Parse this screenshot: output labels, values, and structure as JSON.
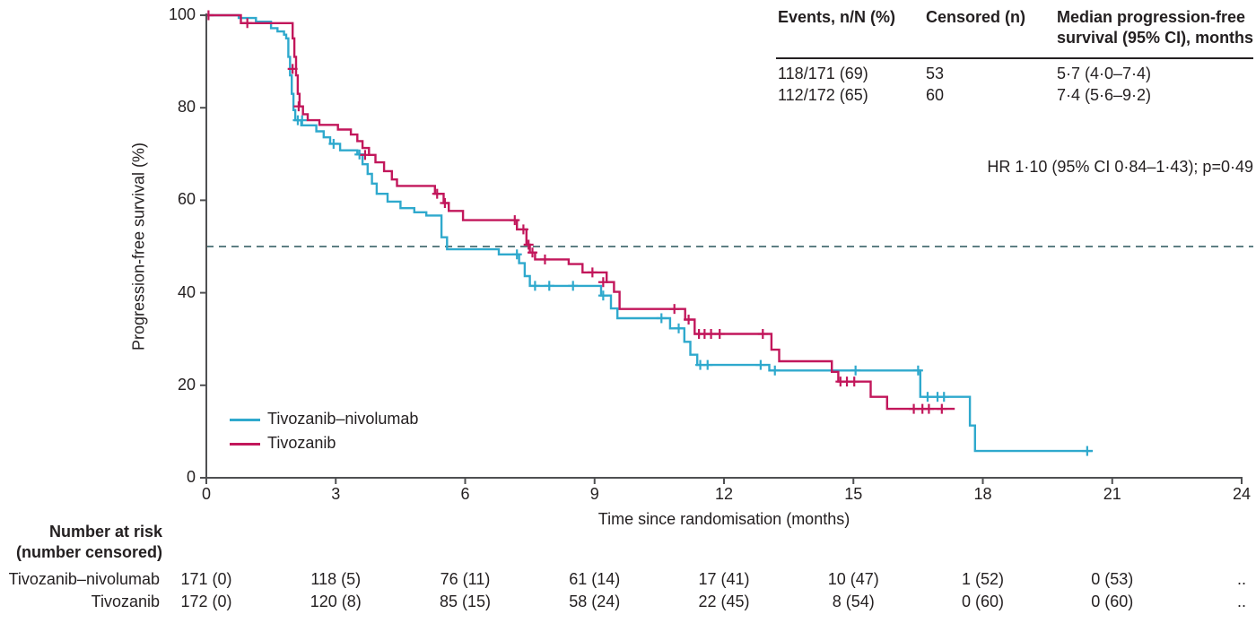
{
  "colors": {
    "text": "#231f20",
    "axis": "#4f5052",
    "series_blue": "#2fa9cd",
    "series_red": "#c2175b",
    "reference_line": "#5d7f83"
  },
  "summary_table": {
    "headers": [
      "Events, n/N (%)",
      "Censored (n)",
      "Median progression-free survival (95% CI), months"
    ],
    "rows": [
      [
        "118/171 (69)",
        "53",
        "5·7 (4·0–7·4)"
      ],
      [
        "112/172 (65)",
        "60",
        "7·4 (5·6–9·2)"
      ]
    ]
  },
  "annotations": {
    "hr_text": "HR 1·10 (95% CI 0·84–1·43); p=0·49"
  },
  "legend": {
    "items": [
      {
        "label": "Tivozanib–nivolumab",
        "color": "#2fa9cd"
      },
      {
        "label": "Tivozanib",
        "color": "#c2175b"
      }
    ]
  },
  "chart_data": {
    "type": "line",
    "subtype": "kaplan-meier-step",
    "title": "",
    "xlabel": "Time since randomisation (months)",
    "ylabel": "Progression-free survival (%)",
    "xlim": [
      0,
      24
    ],
    "ylim": [
      0,
      100
    ],
    "xticks": [
      0,
      3,
      6,
      9,
      12,
      15,
      18,
      21,
      24
    ],
    "yticks": [
      0,
      20,
      40,
      60,
      80,
      100
    ],
    "grid": false,
    "legend_position": "inside-lower-left",
    "reference_line": {
      "y": 50,
      "style": "dashed",
      "color": "#5d7f83"
    },
    "series": [
      {
        "name": "Tivozanib–nivolumab",
        "color": "#2fa9cd",
        "steps": [
          [
            0,
            100
          ],
          [
            0.75,
            99.4
          ],
          [
            1.15,
            98.6
          ],
          [
            1.5,
            97.2
          ],
          [
            1.65,
            96.5
          ],
          [
            1.8,
            95.8
          ],
          [
            1.85,
            95
          ],
          [
            1.9,
            91
          ],
          [
            1.94,
            87
          ],
          [
            1.98,
            83
          ],
          [
            2.02,
            79.5
          ],
          [
            2.06,
            77.3
          ],
          [
            2.2,
            76.2
          ],
          [
            2.55,
            74.9
          ],
          [
            2.72,
            73.6
          ],
          [
            2.87,
            72.2
          ],
          [
            3.1,
            70.8
          ],
          [
            3.5,
            69.9
          ],
          [
            3.62,
            67.8
          ],
          [
            3.74,
            65.7
          ],
          [
            3.84,
            63.6
          ],
          [
            3.95,
            61.4
          ],
          [
            4.2,
            59.7
          ],
          [
            4.5,
            58.3
          ],
          [
            4.82,
            57.4
          ],
          [
            5.1,
            56.7
          ],
          [
            5.45,
            52
          ],
          [
            5.58,
            49.4
          ],
          [
            6.78,
            48.3
          ],
          [
            7.25,
            46.4
          ],
          [
            7.38,
            43.6
          ],
          [
            7.5,
            41.5
          ],
          [
            9.15,
            39.4
          ],
          [
            9.38,
            36.6
          ],
          [
            9.53,
            34.5
          ],
          [
            10.75,
            32.3
          ],
          [
            11.08,
            29.4
          ],
          [
            11.22,
            26.6
          ],
          [
            11.38,
            24.4
          ],
          [
            13.05,
            23.2
          ],
          [
            16.55,
            17.5
          ],
          [
            17.7,
            11.3
          ],
          [
            17.82,
            5.8
          ],
          [
            20.55,
            5.8
          ]
        ],
        "censors": [
          [
            2.12,
            77.3
          ],
          [
            2.22,
            77.3
          ],
          [
            2.95,
            72.2
          ],
          [
            3.55,
            69.9
          ],
          [
            7.2,
            48.3
          ],
          [
            7.62,
            41.5
          ],
          [
            7.95,
            41.5
          ],
          [
            8.5,
            41.5
          ],
          [
            9.2,
            39.4
          ],
          [
            10.55,
            34.5
          ],
          [
            10.95,
            32.3
          ],
          [
            11.45,
            24.4
          ],
          [
            11.62,
            24.4
          ],
          [
            12.85,
            24.4
          ],
          [
            13.18,
            23.2
          ],
          [
            15.05,
            23.2
          ],
          [
            16.5,
            23.2
          ],
          [
            16.72,
            17.5
          ],
          [
            16.95,
            17.5
          ],
          [
            17.1,
            17.5
          ],
          [
            20.42,
            5.8
          ]
        ]
      },
      {
        "name": "Tivozanib",
        "color": "#c2175b",
        "steps": [
          [
            0,
            100
          ],
          [
            0.8,
            98.3
          ],
          [
            2.0,
            95
          ],
          [
            2.04,
            91
          ],
          [
            2.08,
            87
          ],
          [
            2.12,
            83
          ],
          [
            2.16,
            80.3
          ],
          [
            2.24,
            78.6
          ],
          [
            2.35,
            77.3
          ],
          [
            2.62,
            76.3
          ],
          [
            3.05,
            75.3
          ],
          [
            3.35,
            74.2
          ],
          [
            3.5,
            72.8
          ],
          [
            3.62,
            71.3
          ],
          [
            3.77,
            69.8
          ],
          [
            3.92,
            68.2
          ],
          [
            4.12,
            66.3
          ],
          [
            4.3,
            64.5
          ],
          [
            4.42,
            63.1
          ],
          [
            5.3,
            61.4
          ],
          [
            5.5,
            59.4
          ],
          [
            5.62,
            57.7
          ],
          [
            5.95,
            55.7
          ],
          [
            7.2,
            53.7
          ],
          [
            7.42,
            50.4
          ],
          [
            7.5,
            48.7
          ],
          [
            7.62,
            47.2
          ],
          [
            8.4,
            46.2
          ],
          [
            8.72,
            44.4
          ],
          [
            9.28,
            42.3
          ],
          [
            9.45,
            40.2
          ],
          [
            9.58,
            36.5
          ],
          [
            11.1,
            34.2
          ],
          [
            11.32,
            31.1
          ],
          [
            13.1,
            27.7
          ],
          [
            13.28,
            25.2
          ],
          [
            14.5,
            22.9
          ],
          [
            14.65,
            20.8
          ],
          [
            15.4,
            17.5
          ],
          [
            15.78,
            14.9
          ],
          [
            17.35,
            14.9
          ]
        ],
        "censors": [
          [
            0.05,
            100
          ],
          [
            0.95,
            98.3
          ],
          [
            2.0,
            88.4
          ],
          [
            2.14,
            80.3
          ],
          [
            3.68,
            69.8
          ],
          [
            5.35,
            61.4
          ],
          [
            5.53,
            59.4
          ],
          [
            7.15,
            55.7
          ],
          [
            7.35,
            53.7
          ],
          [
            7.47,
            50.4
          ],
          [
            7.56,
            48.7
          ],
          [
            7.85,
            47.2
          ],
          [
            8.95,
            44.4
          ],
          [
            9.2,
            42.3
          ],
          [
            10.85,
            36.5
          ],
          [
            11.18,
            34.2
          ],
          [
            11.42,
            31.1
          ],
          [
            11.55,
            31.1
          ],
          [
            11.7,
            31.1
          ],
          [
            11.9,
            31.1
          ],
          [
            12.9,
            31.1
          ],
          [
            14.7,
            20.8
          ],
          [
            14.85,
            20.8
          ],
          [
            15.02,
            20.8
          ],
          [
            16.4,
            14.9
          ],
          [
            16.6,
            14.9
          ],
          [
            16.75,
            14.9
          ],
          [
            17.05,
            14.9
          ]
        ]
      }
    ]
  },
  "risk_table": {
    "title_line1": "Number at risk",
    "title_line2": "(number censored)",
    "times": [
      0,
      3,
      6,
      9,
      12,
      15,
      18,
      21,
      24
    ],
    "rows": [
      {
        "label": "Tivozanib–nivolumab",
        "values": [
          "171 (0)",
          "118 (5)",
          "76 (11)",
          "61 (14)",
          "17 (41)",
          "10 (47)",
          "1 (52)",
          "0 (53)",
          ".."
        ]
      },
      {
        "label": "Tivozanib",
        "values": [
          "172 (0)",
          "120 (8)",
          "85 (15)",
          "58 (24)",
          "22 (45)",
          "8 (54)",
          "0 (60)",
          "0 (60)",
          ".."
        ]
      }
    ]
  }
}
